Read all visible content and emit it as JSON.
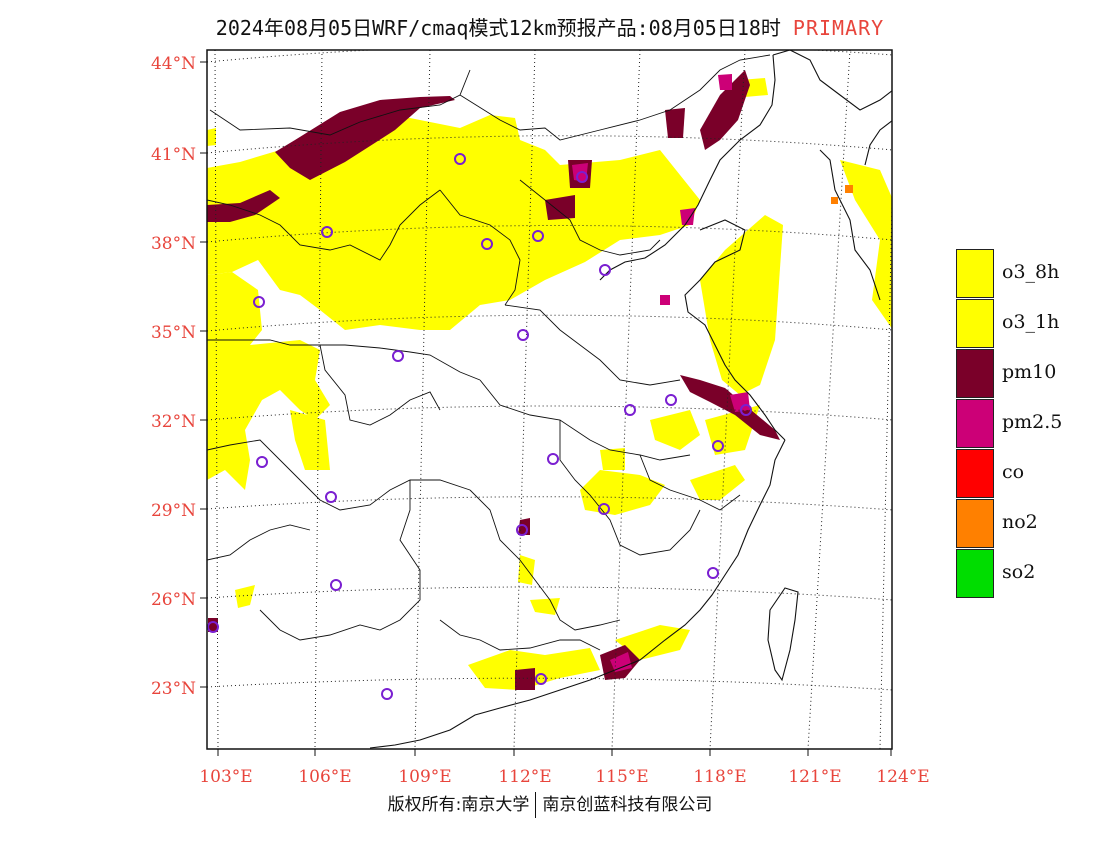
{
  "title": {
    "main": "2024年08月05日WRF/cmaq模式12km预报产品:08月05日18时",
    "tag": "PRIMARY"
  },
  "legend": [
    {
      "label": "o3_8h",
      "color": "#ffff00"
    },
    {
      "label": "o3_1h",
      "color": "#ffff00"
    },
    {
      "label": "pm10",
      "color": "#7a0029"
    },
    {
      "label": "pm2.5",
      "color": "#cc0077"
    },
    {
      "label": "co",
      "color": "#ff0000"
    },
    {
      "label": "no2",
      "color": "#ff8000"
    },
    {
      "label": "so2",
      "color": "#00dd00"
    }
  ],
  "axes": {
    "lat_labels": [
      "44°N",
      "41°N",
      "38°N",
      "35°N",
      "32°N",
      "29°N",
      "26°N",
      "23°N"
    ],
    "lon_labels": [
      "103°E",
      "106°E",
      "109°E",
      "112°E",
      "115°E",
      "118°E",
      "121°E",
      "124°E"
    ],
    "label_color": "#e8453c"
  },
  "footer": {
    "left": "版权所有:南京大学",
    "right": "南京创蓝科技有限公司"
  }
}
